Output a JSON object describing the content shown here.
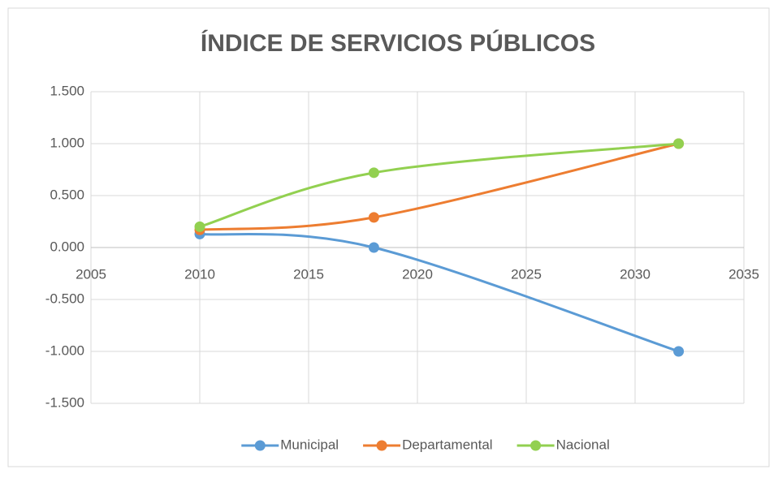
{
  "chart_data": {
    "type": "scatter",
    "title": "ÍNDICE DE SERVICIOS PÚBLICOS",
    "smooth": true,
    "grid": true,
    "legend": "bottom",
    "xlim": [
      2005,
      2035
    ],
    "xticks": [
      2005,
      2010,
      2015,
      2020,
      2025,
      2030,
      2035
    ],
    "ylim": [
      -1.5,
      1.5
    ],
    "yticks": [
      {
        "value": -1.5,
        "label": "-1.500"
      },
      {
        "value": -1,
        "label": "-1.000"
      },
      {
        "value": -0.5,
        "label": "-0.500"
      },
      {
        "value": 0,
        "label": "0.000"
      },
      {
        "value": 0.5,
        "label": "0.500"
      },
      {
        "value": 1,
        "label": "1.000"
      },
      {
        "value": 1.5,
        "label": "1.500"
      }
    ],
    "series": [
      {
        "name": "Municipal",
        "color": "#5b9bd5",
        "x": [
          2010,
          2018,
          2032
        ],
        "values": [
          0.13,
          0.0,
          -1.0
        ]
      },
      {
        "name": "Departamental",
        "color": "#ed7d31",
        "x": [
          2010,
          2018,
          2032
        ],
        "values": [
          0.17,
          0.29,
          1.0
        ]
      },
      {
        "name": "Nacional",
        "color": "#92d050",
        "x": [
          2010,
          2018,
          2032
        ],
        "values": [
          0.2,
          0.72,
          1.0
        ]
      }
    ]
  }
}
